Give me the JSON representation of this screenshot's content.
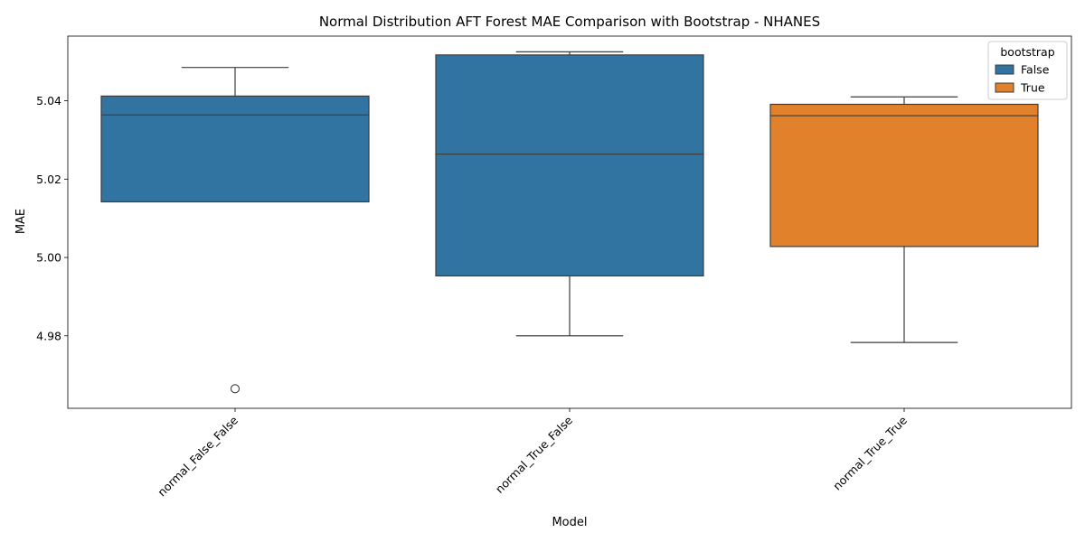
{
  "chart_data": {
    "type": "box",
    "title": "Normal Distribution AFT Forest MAE Comparison with Bootstrap  - NHANES",
    "xlabel": "Model",
    "ylabel": "MAE",
    "categories": [
      "normal_False_False",
      "normal_True_False",
      "normal_True_True"
    ],
    "ylim": [
      4.9615,
      5.0565
    ],
    "yticks": [
      4.98,
      5.0,
      5.02,
      5.04
    ],
    "ytick_labels": [
      "4.98",
      "5.00",
      "5.02",
      "5.04"
    ],
    "legend": {
      "title": "bootstrap",
      "position": "top-right",
      "entries": [
        {
          "label": "False",
          "color": "#3274a1"
        },
        {
          "label": "True",
          "color": "#e1812c"
        }
      ]
    },
    "boxes": [
      {
        "category": "normal_False_False",
        "group": "False",
        "whisker_low": 5.0142,
        "q1": 5.0142,
        "median": 5.0364,
        "q3": 5.0412,
        "whisker_high": 5.0485,
        "outliers": [
          4.9665
        ]
      },
      {
        "category": "normal_True_False",
        "group": "False",
        "whisker_low": 4.98,
        "q1": 4.9953,
        "median": 5.0264,
        "q3": 5.0517,
        "whisker_high": 5.0525,
        "outliers": []
      },
      {
        "category": "normal_True_True",
        "group": "True",
        "whisker_low": 4.9783,
        "q1": 5.0028,
        "median": 5.0362,
        "q3": 5.0391,
        "whisker_high": 5.041,
        "outliers": []
      }
    ]
  }
}
